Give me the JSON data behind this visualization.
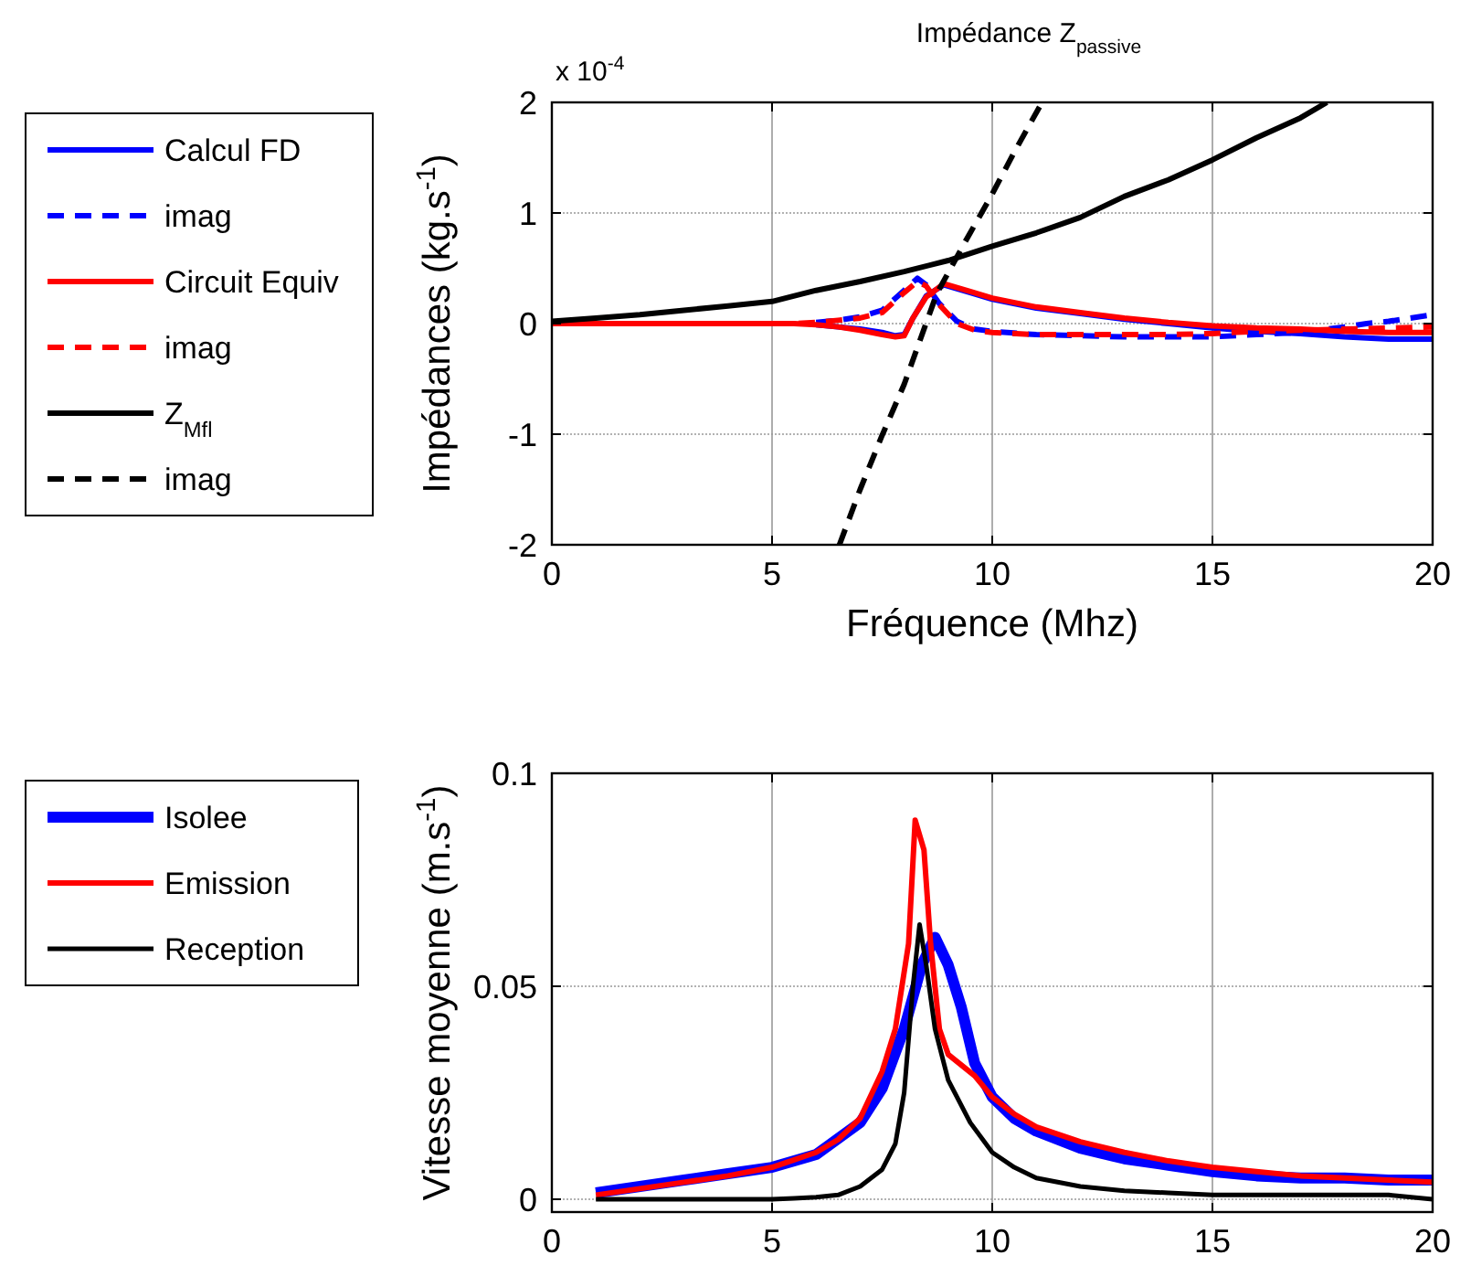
{
  "chart_data": [
    {
      "type": "line",
      "title": "Impédance Z$_{passive}$",
      "xlabel": "Fréquence (Mhz)",
      "ylabel": "Impédances (kg.s$^{-1}$)",
      "annotations": [
        "x 10$^{-4}$"
      ],
      "xlim": [
        0,
        20
      ],
      "xticks": [
        0,
        5,
        10,
        15,
        20
      ],
      "ylim": [
        -2,
        2
      ],
      "yticks": [
        -2,
        -1,
        0,
        1,
        2
      ],
      "grid": true,
      "legend": "left",
      "series": [
        {
          "name": "Calcul FD",
          "color": "#0000ff",
          "line_style": "solid",
          "x": [
            6,
            6.5,
            7,
            7.5,
            7.8,
            8.0,
            8.2,
            8.5,
            8.9,
            9.5,
            10,
            11,
            12,
            13,
            14,
            15,
            16,
            17,
            18,
            19,
            20
          ],
          "values": [
            -0.01,
            -0.03,
            -0.05,
            -0.08,
            -0.11,
            -0.1,
            0.05,
            0.25,
            0.35,
            0.28,
            0.22,
            0.14,
            0.09,
            0.04,
            0.0,
            -0.04,
            -0.07,
            -0.09,
            -0.12,
            -0.14,
            -0.14
          ]
        },
        {
          "name": "imag",
          "color": "#0000ff",
          "line_style": "dashed",
          "x": [
            6,
            6.5,
            7,
            7.5,
            8.0,
            8.3,
            8.5,
            8.8,
            9.2,
            9.6,
            10,
            11,
            12,
            13,
            14,
            15,
            16,
            17,
            18,
            18.5,
            19,
            20
          ],
          "values": [
            0.01,
            0.03,
            0.06,
            0.12,
            0.3,
            0.41,
            0.35,
            0.18,
            0.02,
            -0.05,
            -0.07,
            -0.1,
            -0.11,
            -0.12,
            -0.12,
            -0.12,
            -0.1,
            -0.08,
            -0.03,
            0.0,
            0.02,
            0.08
          ]
        },
        {
          "name": "Circuit Equiv",
          "color": "#ff0000",
          "line_style": "solid",
          "x": [
            0,
            2,
            4,
            5,
            5.5,
            6,
            6.5,
            7,
            7.5,
            7.8,
            8.0,
            8.2,
            8.5,
            8.9,
            9.5,
            10,
            11,
            12,
            13,
            14,
            15,
            16,
            17,
            18,
            19,
            20
          ],
          "values": [
            0,
            0,
            0,
            0,
            0,
            -0.01,
            -0.03,
            -0.06,
            -0.1,
            -0.12,
            -0.11,
            0.05,
            0.24,
            0.36,
            0.29,
            0.23,
            0.15,
            0.1,
            0.05,
            0.01,
            -0.02,
            -0.04,
            -0.05,
            -0.07,
            -0.08,
            -0.08
          ]
        },
        {
          "name": "imag",
          "color": "#ff0000",
          "line_style": "dashed",
          "x": [
            0,
            2,
            4,
            5,
            5.5,
            6,
            6.5,
            7,
            7.5,
            8.0,
            8.3,
            8.5,
            8.8,
            9.2,
            9.6,
            10,
            11,
            12,
            13,
            14,
            15,
            16,
            17,
            18,
            19,
            20
          ],
          "values": [
            0,
            0,
            0,
            0,
            0,
            0.01,
            0.03,
            0.05,
            0.1,
            0.28,
            0.38,
            0.34,
            0.17,
            0.0,
            -0.06,
            -0.08,
            -0.1,
            -0.1,
            -0.1,
            -0.1,
            -0.09,
            -0.07,
            -0.06,
            -0.05,
            -0.04,
            -0.03
          ]
        },
        {
          "name": "Z$_{Mfl}$",
          "color": "#000000",
          "line_style": "solid",
          "x": [
            0,
            1,
            2,
            3,
            4,
            5,
            6,
            7,
            8,
            9,
            10,
            11,
            12,
            13,
            14,
            15,
            16,
            17,
            17.6
          ],
          "values": [
            0.02,
            0.05,
            0.08,
            0.12,
            0.16,
            0.2,
            0.3,
            0.38,
            0.47,
            0.57,
            0.7,
            0.82,
            0.96,
            1.15,
            1.3,
            1.48,
            1.68,
            1.86,
            2.0
          ]
        },
        {
          "name": "imag",
          "color": "#000000",
          "line_style": "dashed",
          "x": [
            6.53,
            7.0,
            7.5,
            8.0,
            8.74,
            9.4,
            9.97,
            10.5,
            11.13
          ],
          "values": [
            -2,
            -1.5,
            -1.01,
            -0.55,
            0.27,
            0.75,
            1.15,
            1.55,
            2.0
          ]
        }
      ]
    },
    {
      "type": "line",
      "ylabel": "Vitesse moyenne (m.s$^{-1}$)",
      "xlim": [
        0,
        20
      ],
      "xticks": [
        0,
        5,
        10,
        15,
        20
      ],
      "ylim": [
        -0.003,
        0.1
      ],
      "yticks": [
        0,
        0.05,
        0.1
      ],
      "grid": true,
      "legend": "left",
      "series": [
        {
          "name": "Isolee",
          "color": "#0000ff",
          "x": [
            1,
            2,
            3,
            4,
            5,
            6,
            7,
            7.5,
            8,
            8.4,
            8.7,
            9,
            9.3,
            9.6,
            10,
            10.5,
            11,
            12,
            13,
            14,
            15,
            16,
            17,
            18,
            19,
            20
          ],
          "values": [
            0.0015,
            0.003,
            0.0045,
            0.006,
            0.0075,
            0.0105,
            0.018,
            0.026,
            0.04,
            0.055,
            0.0615,
            0.055,
            0.045,
            0.032,
            0.024,
            0.019,
            0.016,
            0.012,
            0.0095,
            0.008,
            0.0065,
            0.0055,
            0.005,
            0.005,
            0.0045,
            0.0045
          ]
        },
        {
          "name": "Emission",
          "color": "#ff0000",
          "x": [
            1,
            2,
            3,
            4,
            5,
            6,
            6.5,
            7,
            7.5,
            7.8,
            8.1,
            8.25,
            8.45,
            8.6,
            8.8,
            9.0,
            9.6,
            10,
            10.5,
            11,
            12,
            13,
            14,
            15,
            16,
            17,
            18,
            19,
            20
          ],
          "values": [
            0.001,
            0.0025,
            0.004,
            0.0055,
            0.0075,
            0.011,
            0.014,
            0.019,
            0.03,
            0.04,
            0.06,
            0.089,
            0.082,
            0.06,
            0.04,
            0.034,
            0.029,
            0.024,
            0.02,
            0.017,
            0.0135,
            0.011,
            0.009,
            0.0075,
            0.0065,
            0.0055,
            0.005,
            0.0045,
            0.004
          ]
        },
        {
          "name": "Reception",
          "color": "#000000",
          "x": [
            1,
            5,
            5.5,
            6,
            6.5,
            7,
            7.5,
            7.8,
            8.0,
            8.2,
            8.35,
            8.5,
            8.7,
            9.0,
            9.5,
            10,
            10.5,
            11,
            12,
            13,
            14,
            15,
            17,
            19,
            20
          ],
          "values": [
            0,
            0,
            0.0002,
            0.0005,
            0.001,
            0.003,
            0.007,
            0.013,
            0.025,
            0.05,
            0.0645,
            0.055,
            0.04,
            0.028,
            0.018,
            0.011,
            0.0075,
            0.005,
            0.003,
            0.002,
            0.0015,
            0.001,
            0.001,
            0.001,
            0
          ]
        }
      ]
    }
  ]
}
